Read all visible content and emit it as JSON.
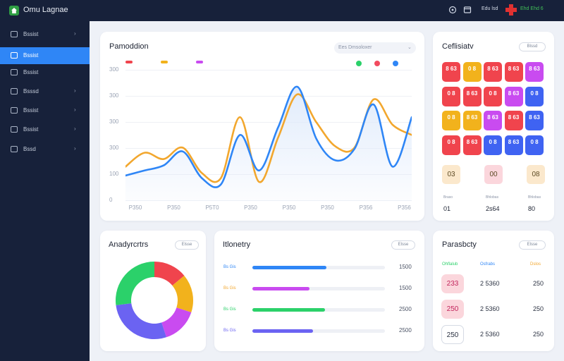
{
  "topbar": {
    "app_title": "Omu Lagnae",
    "app_subtitle": "",
    "user_label": "Edu lsd",
    "status_text": "Ehd Ehd 6",
    "icons": [
      "help-circle-icon",
      "calendar-icon",
      "flag-badge-icon"
    ]
  },
  "sidebar": {
    "items": [
      {
        "label": "Bssist",
        "icon": "folder-icon",
        "has_chevron": true,
        "active": false
      },
      {
        "label": "Bssist",
        "icon": "dashboard-icon",
        "has_chevron": false,
        "active": true
      },
      {
        "label": "Bssist",
        "icon": "folder-icon",
        "has_chevron": false,
        "active": false
      },
      {
        "label": "Bsssd",
        "icon": "mail-icon",
        "has_chevron": true,
        "active": false
      },
      {
        "label": "Bssist",
        "icon": "pencil-icon",
        "has_chevron": true,
        "active": false
      },
      {
        "label": "Bssist",
        "icon": "layers-icon",
        "has_chevron": true,
        "active": false
      },
      {
        "label": "Bssd",
        "icon": "bag-icon",
        "has_chevron": true,
        "active": false
      }
    ]
  },
  "main_chart": {
    "title": "Pamoddion",
    "select_value": "Ees Dmsoloxer",
    "legend": [
      "",
      "",
      ""
    ],
    "legend_colors": [
      "#f0444d",
      "#f2b21c",
      "#c94bf0"
    ],
    "legend_right_colors": [
      "#2bd16a",
      "#f24b5f",
      "#2f86f6"
    ],
    "chart_data": {
      "type": "area",
      "title": "",
      "xlabel": "",
      "ylabel": "",
      "y_ticks": [
        "300",
        "300",
        "300",
        "300",
        "100",
        "0"
      ],
      "ylim": [
        0,
        500
      ],
      "categories": [
        "P350",
        "P350",
        "P5T0",
        "P350",
        "P350",
        "P350",
        "P356",
        "P356"
      ],
      "x": [
        0,
        0.5,
        1,
        1.5,
        2,
        2.5,
        3,
        3.5,
        4,
        4.5,
        5,
        5.5,
        6,
        6.5,
        7,
        7.5
      ],
      "series": [
        {
          "name": "",
          "color": "#f2a72e",
          "values": [
            135,
            190,
            165,
            210,
            110,
            90,
            330,
            75,
            250,
            420,
            310,
            215,
            210,
            400,
            300,
            260
          ]
        },
        {
          "name": "",
          "color": "#2f86f6",
          "values": [
            100,
            120,
            140,
            195,
            90,
            65,
            260,
            120,
            290,
            450,
            245,
            160,
            205,
            380,
            135,
            330
          ]
        }
      ],
      "grid": true,
      "fill": "#dde9fb"
    }
  },
  "tiles_panel": {
    "title": "Ceflisiatv",
    "button_label": "Blssd",
    "tile_rows": [
      [
        {
          "text": "8\n63",
          "color": "#f0444d"
        },
        {
          "text": "0\n8",
          "color": "#f2b21c"
        },
        {
          "text": "8\n63",
          "color": "#f0444d"
        },
        {
          "text": "8\n63",
          "color": "#f0444d"
        },
        {
          "text": "8\n63",
          "color": "#c94bf0"
        }
      ],
      [
        {
          "text": "0\n8",
          "color": "#f0444d"
        },
        {
          "text": "8\n63",
          "color": "#f0444d"
        },
        {
          "text": "0\n8",
          "color": "#f0444d"
        },
        {
          "text": "8\n63",
          "color": "#c94bf0"
        },
        {
          "text": "0\n8",
          "color": "#3f63f2"
        }
      ],
      [
        {
          "text": "0\n8",
          "color": "#f2b21c"
        },
        {
          "text": "8\n63",
          "color": "#f2b21c"
        },
        {
          "text": "8\n63",
          "color": "#c94bf0"
        },
        {
          "text": "8\n63",
          "color": "#f0444d"
        },
        {
          "text": "8\n63",
          "color": "#3f63f2"
        }
      ],
      [
        {
          "text": "0\n8",
          "color": "#f0444d"
        },
        {
          "text": "8\n63",
          "color": "#f0444d"
        },
        {
          "text": "0\n8",
          "color": "#3f63f2"
        },
        {
          "text": "8\n63",
          "color": "#3f63f2"
        },
        {
          "text": "0\n8",
          "color": "#3f63f2"
        }
      ]
    ],
    "stats": [
      {
        "tile_text": "03",
        "tile_color": "#fbe8cc",
        "caption": "Braso",
        "value": "01"
      },
      {
        "tile_text": "00",
        "tile_color": "#fbd6dc",
        "caption": "Bhlobas",
        "value": "2s64"
      },
      {
        "tile_text": "08",
        "tile_color": "#fbe8cc",
        "caption": "Bhlobas",
        "value": "80"
      }
    ]
  },
  "donut_card": {
    "title": "Anadyrcrtrs",
    "button_label": "Elsse",
    "chart_data": {
      "type": "pie",
      "title": "",
      "slices": [
        {
          "label": "",
          "value": 0.14,
          "color": "#f0444d"
        },
        {
          "label": "",
          "value": 0.16,
          "color": "#f2b21c"
        },
        {
          "label": "",
          "value": 0.15,
          "color": "#c94bf0"
        },
        {
          "label": "",
          "value": 0.28,
          "color": "#6b63f2"
        },
        {
          "label": "",
          "value": 0.27,
          "color": "#2bd16a"
        }
      ],
      "donut": true
    }
  },
  "progress_card": {
    "title": "Itlonetry",
    "button_label": "Elsse",
    "bars": [
      {
        "label": "Bs Gis",
        "label_color": "#2f86f6",
        "value_text": "1500",
        "fraction": 0.56,
        "color": "#2f86f6"
      },
      {
        "label": "Bs Gis",
        "label_color": "#f2a72e",
        "value_text": "1500",
        "fraction": 0.43,
        "color": "#c94bf0"
      },
      {
        "label": "Bs Gis",
        "label_color": "#2bd16a",
        "value_text": "2500",
        "fraction": 0.55,
        "color": "#2bd16a"
      },
      {
        "label": "Bs Gis",
        "label_color": "#6b63f2",
        "value_text": "2500",
        "fraction": 0.46,
        "color": "#6b63f2"
      }
    ]
  },
  "popularity_card": {
    "title": "Parasbcty",
    "button_label": "Elsse",
    "headers": [
      {
        "text": "Ohflalub",
        "color": "#2bd16a"
      },
      {
        "text": "Osfrabs",
        "color": "#2f86f6"
      },
      {
        "text": "Dslos",
        "color": "#f2a72e"
      }
    ],
    "rows": [
      {
        "badge": "233",
        "badge_color": "#fbd6dc",
        "badge_text_color": "#c2255c",
        "mid": "2 5360",
        "right": "250"
      },
      {
        "badge": "250",
        "badge_color": "#fbd6dc",
        "badge_text_color": "#c2255c",
        "mid": "2 5360",
        "right": "250"
      },
      {
        "badge": "250",
        "badge_color": "#ffffff",
        "badge_text_color": "#2b3242",
        "mid": "2 5360",
        "right": "250"
      }
    ]
  }
}
